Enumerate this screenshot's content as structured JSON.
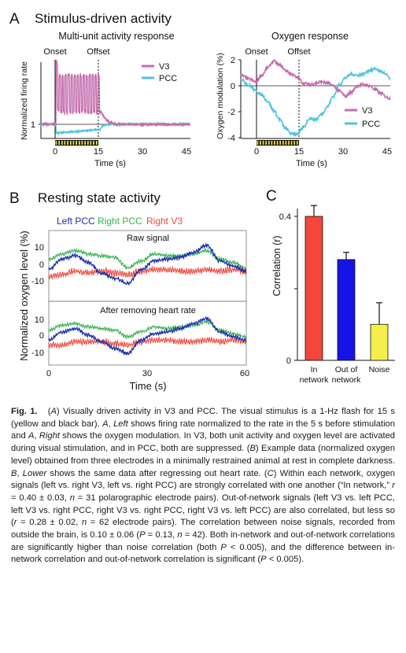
{
  "panel_a": {
    "letter": "A",
    "title": "Stimulus-driven activity",
    "left": {
      "subtitle": "Multi-unit activity response",
      "ylabel": "Normalized firing rate",
      "xlabel": "Time (s)",
      "onset_label": "Onset",
      "offset_label": "Offset",
      "xticks": [
        "0",
        "15",
        "30",
        "45"
      ]
    },
    "right": {
      "subtitle": "Oxygen response",
      "ylabel": "Oxygen modulation (%)",
      "xlabel": "Time (s)",
      "onset_label": "Onset",
      "offset_label": "Offset",
      "xticks": [
        "0",
        "15",
        "30",
        "45"
      ],
      "yticks": [
        "2",
        "0",
        "-2",
        "-4"
      ]
    }
  },
  "panel_b": {
    "letter": "B",
    "title": "Resting state activity",
    "ylabel": "Normalized oxygen level (%)",
    "xlabel": "Time (s)",
    "legend": [
      "Left PCC",
      "Right PCC",
      "Right V3"
    ],
    "top_label": "Raw signal",
    "bottom_label": "After removing heart rate",
    "xticks": [
      "0",
      "30",
      "60"
    ],
    "yticks": [
      "10",
      "0",
      "-10"
    ]
  },
  "panel_c": {
    "letter": "C",
    "ylabel": "Correlation (r)",
    "yticks": [
      "0.4",
      "0"
    ]
  },
  "chart_data": [
    {
      "id": "A-left",
      "type": "line",
      "title": "Multi-unit activity response",
      "xlabel": "Time (s)",
      "ylabel": "Normalized firing rate",
      "xlim": [
        -5,
        45
      ],
      "stimulus": {
        "start": 0,
        "end": 15
      },
      "series": [
        {
          "name": "V3",
          "color": "#c46cae"
        },
        {
          "name": "PCC",
          "color": "#4fc3de"
        }
      ]
    },
    {
      "id": "A-right",
      "type": "line",
      "title": "Oxygen response",
      "xlabel": "Time (s)",
      "ylabel": "Oxygen modulation (%)",
      "xlim": [
        -5,
        45
      ],
      "ylim": [
        -4.3,
        2.2
      ],
      "stimulus": {
        "start": 0,
        "end": 15
      },
      "series": [
        {
          "name": "V3",
          "color": "#c46cae",
          "x": [
            -5,
            -2,
            0,
            2,
            4,
            6,
            8,
            10,
            12,
            14,
            16,
            18,
            20,
            22,
            24,
            26,
            28,
            30,
            32,
            34,
            36,
            38,
            40,
            42,
            44,
            45
          ],
          "y": [
            0.8,
            0.5,
            0.3,
            0.8,
            1.4,
            1.9,
            1.6,
            1.2,
            0.9,
            0.6,
            0.2,
            0.1,
            0.2,
            0.3,
            0.2,
            0.0,
            -0.4,
            -0.8,
            -0.5,
            0.0,
            0.1,
            0.0,
            -0.3,
            -0.6,
            -0.9,
            -1.0
          ]
        },
        {
          "name": "PCC",
          "color": "#4fc3de",
          "x": [
            -5,
            -2,
            0,
            2,
            4,
            6,
            8,
            10,
            12,
            14,
            16,
            18,
            20,
            22,
            24,
            26,
            28,
            30,
            32,
            34,
            36,
            38,
            40,
            42,
            44,
            45
          ],
          "y": [
            0.5,
            0.0,
            -0.4,
            -0.7,
            -1.2,
            -1.9,
            -2.6,
            -3.3,
            -3.7,
            -3.7,
            -3.2,
            -2.5,
            -2.6,
            -2.2,
            -1.6,
            -0.8,
            0.1,
            0.6,
            0.9,
            0.8,
            0.9,
            1.2,
            1.3,
            1.1,
            0.8,
            0.5
          ]
        }
      ]
    },
    {
      "id": "B-top",
      "type": "line",
      "title": "Raw signal",
      "xlabel": "Time (s)",
      "ylabel": "Normalized oxygen level (%)",
      "xlim": [
        0,
        60
      ],
      "ylim": [
        -14,
        14
      ],
      "series": [
        {
          "name": "Left PCC",
          "color": "#1b2fb0",
          "x": [
            0,
            4,
            8,
            12,
            16,
            20,
            24,
            28,
            32,
            36,
            40,
            44,
            48,
            52,
            56,
            60
          ],
          "y": [
            -3,
            3,
            5,
            1,
            -5,
            -8,
            -11,
            -3,
            2,
            3,
            4,
            7,
            11,
            2,
            -1,
            -4
          ]
        },
        {
          "name": "Right PCC",
          "color": "#35b04a",
          "x": [
            0,
            4,
            8,
            12,
            16,
            20,
            24,
            28,
            32,
            36,
            40,
            44,
            48,
            52,
            56,
            60
          ],
          "y": [
            3,
            6,
            8,
            6,
            5,
            4,
            -2,
            2,
            6,
            5,
            5,
            6,
            8,
            3,
            1,
            -2
          ]
        },
        {
          "name": "Right V3",
          "color": "#f0483c",
          "x": [
            0,
            4,
            8,
            12,
            16,
            20,
            24,
            28,
            32,
            36,
            40,
            44,
            48,
            52,
            56,
            60
          ],
          "y": [
            -7,
            -6,
            -4,
            -5,
            -4,
            -5,
            -6,
            -4,
            -3,
            -3,
            -4,
            -4,
            -3,
            -4,
            -3,
            -4
          ]
        }
      ]
    },
    {
      "id": "B-bottom",
      "type": "line",
      "title": "After removing heart rate",
      "xlabel": "Time (s)",
      "ylabel": "Normalized oxygen level (%)",
      "xlim": [
        0,
        60
      ],
      "ylim": [
        -14,
        14
      ],
      "series": [
        {
          "name": "Left PCC",
          "color": "#1b2fb0",
          "x": [
            0,
            4,
            8,
            12,
            16,
            20,
            24,
            28,
            32,
            36,
            40,
            44,
            48,
            52,
            56,
            60
          ],
          "y": [
            -3,
            2,
            4,
            0,
            -4,
            -8,
            -11,
            -3,
            1,
            2,
            4,
            7,
            10,
            2,
            -1,
            -3
          ]
        },
        {
          "name": "Right PCC",
          "color": "#35b04a",
          "x": [
            0,
            4,
            8,
            12,
            16,
            20,
            24,
            28,
            32,
            36,
            40,
            44,
            48,
            52,
            56,
            60
          ],
          "y": [
            3,
            6,
            7,
            5,
            4,
            3,
            -1,
            2,
            5,
            4,
            5,
            6,
            8,
            3,
            1,
            -1
          ]
        },
        {
          "name": "Right V3",
          "color": "#f0483c",
          "x": [
            0,
            4,
            8,
            12,
            16,
            20,
            24,
            28,
            32,
            36,
            40,
            44,
            48,
            52,
            56,
            60
          ],
          "y": [
            -6,
            -6,
            -4,
            -4,
            -4,
            -5,
            -6,
            -4,
            -3,
            -3,
            -4,
            -4,
            -3,
            -4,
            -3,
            -4
          ]
        }
      ]
    },
    {
      "id": "C",
      "type": "bar",
      "ylabel": "Correlation (r)",
      "ylim": [
        0,
        0.45
      ],
      "categories": [
        "In network",
        "Out of network",
        "Noise"
      ],
      "category_lines": [
        [
          "In",
          "network"
        ],
        [
          "Out of",
          "network"
        ],
        [
          "Noise"
        ]
      ],
      "values": [
        0.4,
        0.28,
        0.1
      ],
      "errors": [
        0.03,
        0.02,
        0.06
      ],
      "colors": [
        "#f4473a",
        "#1414e6",
        "#f4ef4a"
      ]
    }
  ],
  "caption": {
    "label": "Fig. 1.",
    "html": "(<i>A</i>) Visually driven activity in V3 and PCC. The visual stimulus is a 1-Hz flash for 15 s (yellow and black bar). <i>A</i>, <i>Left</i> shows firing rate normalized to the rate in the 5 s before stimulation and <i>A</i>, <i>Right</i> shows the oxygen modulation. In V3, both unit activity and oxygen level are activated during visual stimulation, and in PCC, both are suppressed. (<i>B</i>) Example data (normalized oxygen level) obtained from three electrodes in a minimally restrained animal at rest in complete darkness. <i>B</i>, <i>Lower</i> shows the same data after regressing out heart rate. (<i>C</i>) Within each network, oxygen signals (left vs. right V3, left vs. right PCC) are strongly correlated with one another (“In network,” <i>r</i> = 0.40 ± 0.03, <i>n</i> = 31 polarographic electrode pairs). Out-of-network signals (left V3 vs. left PCC, left V3 vs. right PCC, right V3 vs. right PCC, right V3 vs. left PCC) are also correlated, but less so (<i>r</i> = 0.28 ± 0.02, <i>n</i> = 62 electrode pairs). The correlation between noise signals, recorded from outside the brain, is 0.10 ± 0.06 (<i>P</i> = 0.13, <i>n</i> = 42). Both in-network and out-of-network correlations are significantly higher than noise correlation (both <i>P</i> &lt; 0.005), and the difference between in-network correlation and out-of-network correlation is significant (<i>P</i> &lt; 0.005)."
  }
}
